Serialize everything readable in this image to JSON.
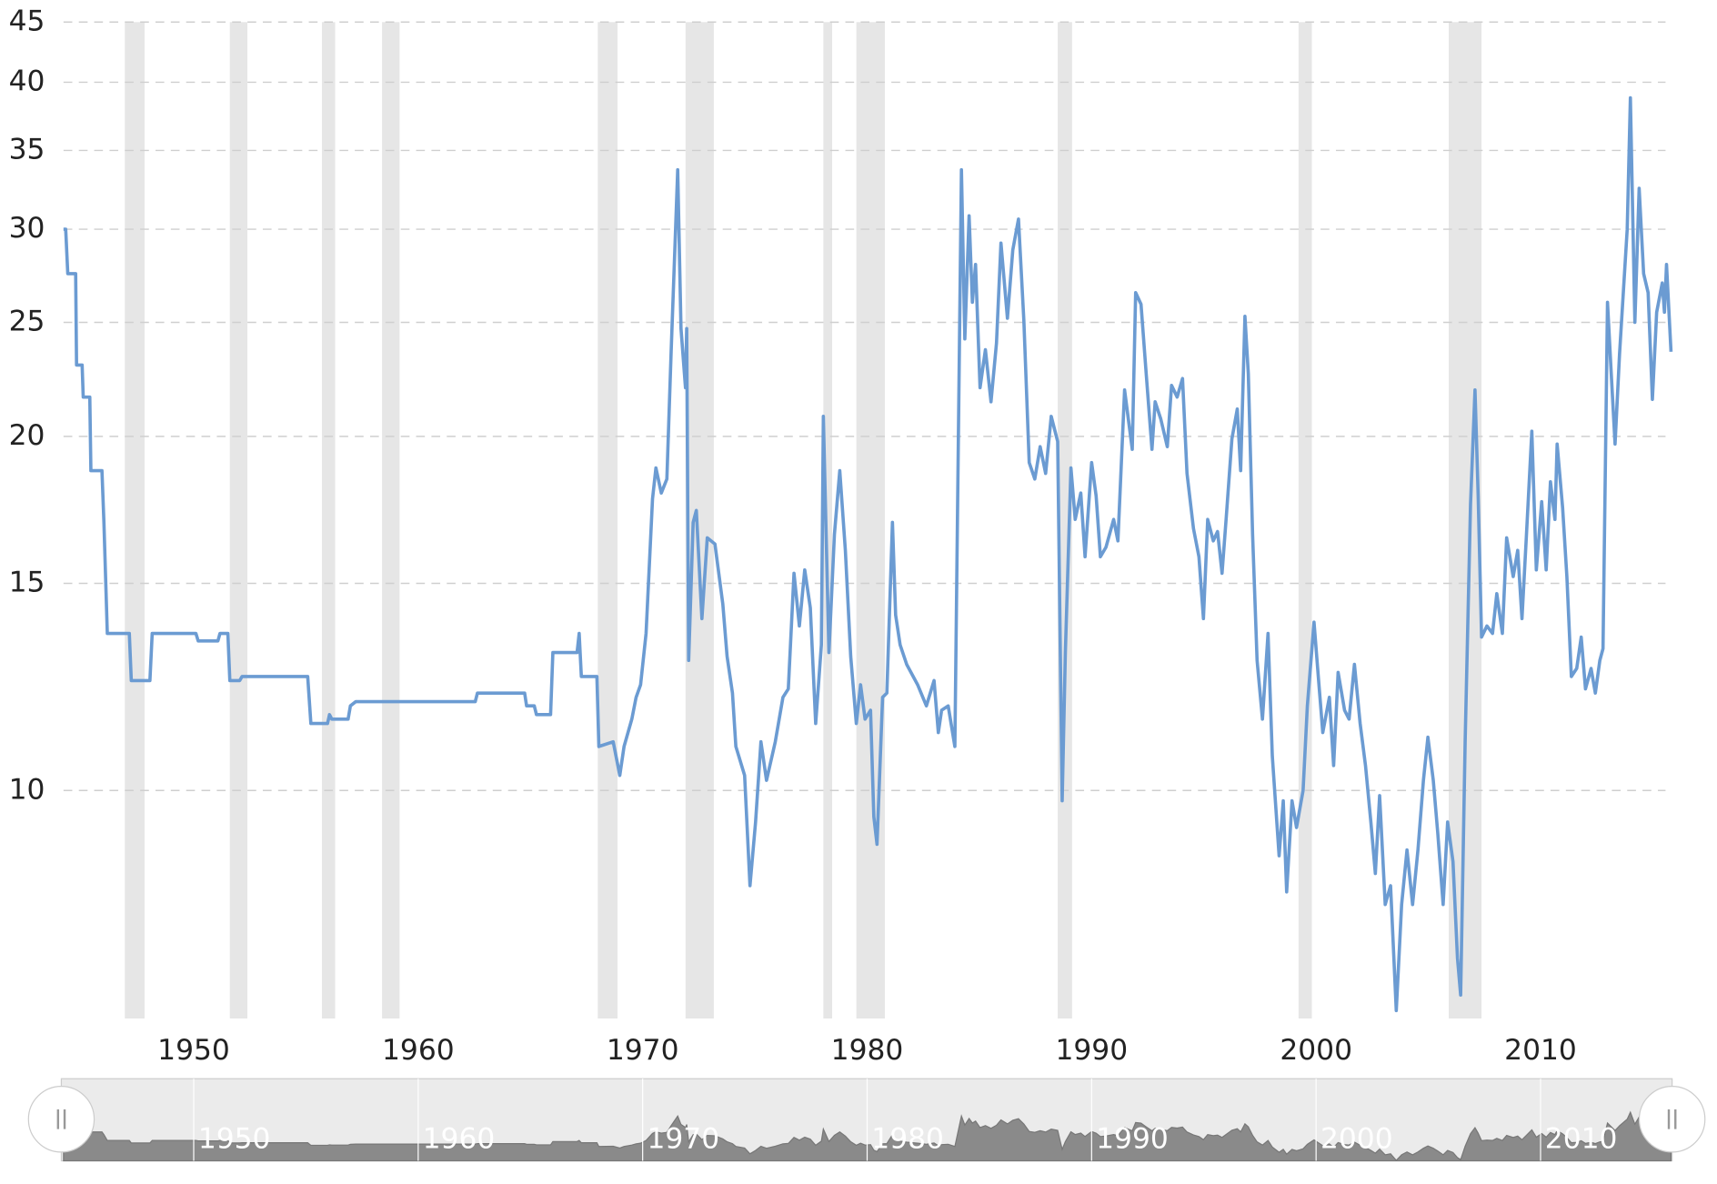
{
  "chart_data": {
    "type": "line",
    "x": [
      1944.2,
      1944.3,
      1944.39,
      1944.74,
      1944.78,
      1945.03,
      1945.08,
      1945.37,
      1945.42,
      1945.91,
      1946.0,
      1946.15,
      1947.13,
      1947.22,
      1948.05,
      1948.15,
      1950.1,
      1950.2,
      1951.08,
      1951.17,
      1951.52,
      1951.61,
      1952.05,
      1952.15,
      1955.08,
      1955.22,
      1955.96,
      1956.05,
      1956.15,
      1956.88,
      1956.98,
      1957.22,
      1962.54,
      1962.64,
      1964.74,
      1964.83,
      1965.17,
      1965.27,
      1965.9,
      1966.0,
      1967.08,
      1967.17,
      1967.27,
      1967.96,
      1968.05,
      1968.69,
      1968.98,
      1969.17,
      1969.52,
      1969.71,
      1969.91,
      1970.15,
      1970.44,
      1970.59,
      1970.83,
      1971.08,
      1971.27,
      1971.56,
      1971.71,
      1971.91,
      1971.96,
      1972.05,
      1972.25,
      1972.39,
      1972.64,
      1972.88,
      1973.22,
      1973.57,
      1973.76,
      1974.0,
      1974.15,
      1974.54,
      1974.78,
      1975.03,
      1975.27,
      1975.52,
      1975.91,
      1976.25,
      1976.49,
      1976.74,
      1976.98,
      1977.22,
      1977.47,
      1977.71,
      1977.96,
      1978.05,
      1978.3,
      1978.54,
      1978.78,
      1979.03,
      1979.27,
      1979.52,
      1979.71,
      1979.91,
      1980.15,
      1980.3,
      1980.44,
      1980.69,
      1980.88,
      1981.13,
      1981.27,
      1981.47,
      1981.76,
      1982.25,
      1982.64,
      1982.98,
      1983.17,
      1983.32,
      1983.61,
      1983.91,
      1984.2,
      1984.35,
      1984.54,
      1984.69,
      1984.83,
      1985.03,
      1985.27,
      1985.52,
      1985.76,
      1985.96,
      1986.25,
      1986.49,
      1986.74,
      1986.98,
      1987.22,
      1987.47,
      1987.71,
      1987.95,
      1988.2,
      1988.49,
      1988.69,
      1988.83,
      1989.08,
      1989.27,
      1989.52,
      1989.71,
      1990.0,
      1990.2,
      1990.39,
      1990.64,
      1990.98,
      1991.17,
      1991.47,
      1991.81,
      1991.96,
      1992.2,
      1992.44,
      1992.69,
      1992.83,
      1993.08,
      1993.37,
      1993.56,
      1993.81,
      1994.05,
      1994.25,
      1994.54,
      1994.78,
      1994.98,
      1995.17,
      1995.42,
      1995.61,
      1995.81,
      1996.0,
      1996.25,
      1996.49,
      1996.64,
      1996.83,
      1996.98,
      1997.17,
      1997.37,
      1997.61,
      1997.86,
      1998.05,
      1998.35,
      1998.54,
      1998.69,
      1998.93,
      1999.13,
      1999.42,
      1999.61,
      1999.91,
      2000.1,
      2000.3,
      2000.59,
      2000.78,
      2000.98,
      2001.27,
      2001.47,
      2001.71,
      2001.96,
      2002.2,
      2002.44,
      2002.64,
      2002.83,
      2003.08,
      2003.32,
      2003.57,
      2003.81,
      2004.05,
      2004.3,
      2004.54,
      2004.78,
      2004.98,
      2005.22,
      2005.42,
      2005.66,
      2005.86,
      2006.1,
      2006.3,
      2006.44,
      2006.64,
      2006.88,
      2007.08,
      2007.22,
      2007.37,
      2007.61,
      2007.86,
      2008.05,
      2008.3,
      2008.49,
      2008.78,
      2008.98,
      2009.17,
      2009.37,
      2009.61,
      2009.81,
      2010.05,
      2010.25,
      2010.44,
      2010.64,
      2010.74,
      2010.98,
      2011.17,
      2011.37,
      2011.61,
      2011.81,
      2012.0,
      2012.25,
      2012.44,
      2012.64,
      2012.78,
      2012.98,
      2013.13,
      2013.32,
      2013.52,
      2013.66,
      2013.86,
      2014.0,
      2014.2,
      2014.39,
      2014.59,
      2014.79,
      2014.98,
      2015.17,
      2015.42,
      2015.52,
      2015.61,
      2015.81
    ],
    "values": [
      30,
      30,
      27.5,
      27.5,
      23.0,
      23.0,
      21.6,
      21.6,
      18.7,
      18.7,
      16.9,
      13.6,
      13.6,
      12.4,
      12.4,
      13.6,
      13.6,
      13.4,
      13.4,
      13.6,
      13.6,
      12.4,
      12.4,
      12.5,
      12.5,
      11.4,
      11.4,
      11.6,
      11.5,
      11.5,
      11.8,
      11.9,
      11.9,
      12.1,
      12.1,
      11.8,
      11.8,
      11.6,
      11.6,
      13.1,
      13.1,
      13.6,
      12.5,
      12.5,
      10.9,
      11.0,
      10.3,
      10.9,
      11.5,
      12.0,
      12.3,
      13.6,
      17.7,
      18.8,
      17.9,
      18.4,
      23.6,
      33.7,
      24.7,
      22.0,
      24.7,
      12.9,
      16.9,
      17.3,
      14.0,
      16.4,
      16.2,
      14.4,
      13.0,
      12.1,
      10.9,
      10.3,
      8.3,
      9.4,
      11.0,
      10.2,
      11.0,
      12.0,
      12.2,
      15.3,
      13.8,
      15.4,
      14.3,
      11.4,
      13.3,
      20.8,
      13.1,
      16.5,
      18.7,
      16.0,
      13.0,
      11.4,
      12.3,
      11.5,
      11.7,
      9.5,
      9.0,
      12.0,
      12.1,
      16.9,
      14.1,
      13.3,
      12.8,
      12.3,
      11.8,
      12.4,
      11.2,
      11.7,
      11.8,
      10.9,
      33.7,
      24.2,
      30.8,
      26.0,
      28.0,
      22.0,
      23.7,
      21.4,
      24.0,
      29.2,
      25.2,
      28.8,
      30.6,
      25.1,
      19.0,
      18.4,
      19.6,
      18.6,
      20.8,
      19.8,
      9.8,
      13.1,
      18.8,
      17.0,
      17.9,
      15.8,
      19.0,
      17.8,
      15.8,
      16.1,
      17.0,
      16.3,
      21.9,
      19.5,
      26.5,
      25.9,
      22.5,
      19.5,
      21.4,
      20.7,
      19.6,
      22.1,
      21.6,
      22.4,
      18.6,
      16.7,
      15.8,
      14.0,
      17.0,
      16.3,
      16.6,
      15.3,
      17.1,
      19.9,
      21.1,
      18.7,
      25.3,
      22.6,
      16.5,
      12.9,
      11.5,
      13.6,
      10.7,
      8.8,
      9.8,
      8.2,
      9.8,
      9.3,
      10.0,
      11.8,
      13.9,
      12.5,
      11.2,
      12.0,
      10.5,
      12.6,
      11.7,
      11.5,
      12.8,
      11.4,
      10.5,
      9.4,
      8.5,
      9.9,
      8.0,
      8.3,
      6.5,
      8.0,
      8.9,
      8.0,
      8.9,
      10.2,
      11.1,
      10.2,
      9.2,
      8.0,
      9.4,
      8.7,
      7.2,
      6.7,
      11.0,
      17.5,
      21.9,
      17.8,
      13.5,
      13.8,
      13.6,
      14.7,
      13.6,
      16.4,
      15.2,
      16.0,
      14.0,
      16.5,
      20.2,
      15.4,
      17.6,
      15.4,
      18.3,
      17.0,
      19.7,
      17.4,
      15.2,
      12.5,
      12.7,
      13.5,
      12.2,
      12.7,
      12.1,
      12.9,
      13.2,
      26.0,
      23.0,
      19.7,
      23.5,
      26.0,
      30.0,
      38.8,
      25.0,
      32.5,
      27.5,
      26.5,
      21.5,
      25.5,
      27.0,
      25.5,
      28.0,
      23.6
    ],
    "color": "#6b9bd2",
    "shaded_periods": [
      [
        1946.93,
        1947.81
      ],
      [
        1951.61,
        1952.39
      ],
      [
        1955.71,
        1956.3
      ],
      [
        1958.39,
        1959.17
      ],
      [
        1968.0,
        1968.88
      ],
      [
        1971.91,
        1973.17
      ],
      [
        1978.05,
        1978.44
      ],
      [
        1979.52,
        1980.79
      ],
      [
        1988.49,
        1989.13
      ],
      [
        1999.22,
        1999.81
      ],
      [
        2005.91,
        2007.37
      ]
    ],
    "shade_color": "#e6e6e6",
    "xlim": [
      1944.2,
      2015.86
    ],
    "xticks": [
      1950,
      1960,
      1970,
      1980,
      1990,
      2000,
      2010
    ],
    "ylim": [
      6.4,
      45
    ],
    "yticks": [
      10,
      15,
      20,
      25,
      30,
      35,
      40,
      45
    ],
    "log_scale": true,
    "grid": true,
    "navigator": true
  }
}
